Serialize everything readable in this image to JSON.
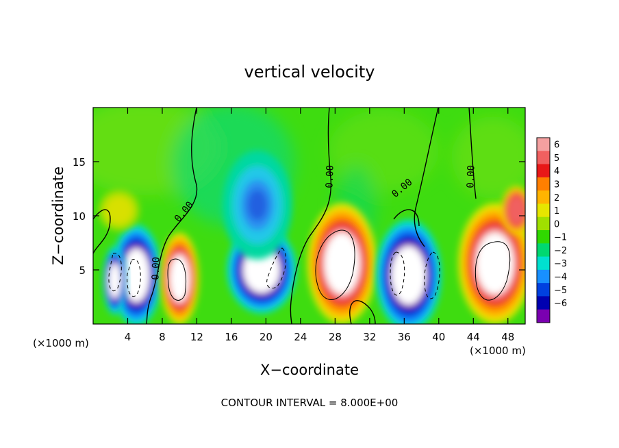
{
  "chart_data": {
    "type": "heatmap",
    "title": "vertical velocity",
    "xlabel": "X−coordinate",
    "ylabel": "Z−coordinate",
    "x_unit_left": "(×1000 m)",
    "x_unit_right": "(×1000 m)",
    "xlim": [
      0,
      50
    ],
    "ylim": [
      0,
      20
    ],
    "x_ticks": [
      4,
      8,
      12,
      16,
      20,
      24,
      28,
      32,
      36,
      40,
      44,
      48
    ],
    "x_tick_labels": [
      "4",
      "8",
      "12",
      "16",
      "20",
      "24",
      "28",
      "32",
      "36",
      "40",
      "44",
      "48"
    ],
    "y_ticks": [
      5,
      10,
      15
    ],
    "y_tick_labels": [
      "5",
      "10",
      "15"
    ],
    "colorbar": {
      "ticks": [
        6,
        5,
        4,
        3,
        2,
        1,
        0,
        -1,
        -2,
        -3,
        -4,
        -5,
        -6
      ],
      "tick_labels": [
        "6",
        "5",
        "4",
        "3",
        "2",
        "1",
        "0",
        "−1",
        "−2",
        "−3",
        "−4",
        "−5",
        "−6"
      ],
      "colors": [
        "#f4a0a0",
        "#f06060",
        "#e81818",
        "#ff7f00",
        "#ffb400",
        "#e6e600",
        "#a0e000",
        "#30d800",
        "#00d870",
        "#00e0d0",
        "#1890ff",
        "#0040e0",
        "#0000b0",
        "#7a00b0"
      ]
    },
    "contour_label": "0.00",
    "footer": "CONTOUR INTERVAL = 8.000E+00",
    "cells": [
      {
        "x": 5.0,
        "z": 4.5,
        "rx": 2.6,
        "rz": 4.2,
        "value": -12
      },
      {
        "x": 2.5,
        "z": 4.0,
        "rx": 1.2,
        "rz": 2.8,
        "value": -8
      },
      {
        "x": 10.0,
        "z": 4.2,
        "rx": 2.0,
        "rz": 3.8,
        "value": 10
      },
      {
        "x": 19.5,
        "z": 5.0,
        "rx": 3.6,
        "rz": 3.6,
        "value": -10
      },
      {
        "x": 19.0,
        "z": 11.0,
        "rx": 4.0,
        "rz": 5.0,
        "value": -3
      },
      {
        "x": 28.8,
        "z": 5.6,
        "rx": 3.6,
        "rz": 5.0,
        "value": 14
      },
      {
        "x": 36.5,
        "z": 4.5,
        "rx": 3.4,
        "rz": 4.6,
        "value": -12
      },
      {
        "x": 46.5,
        "z": 5.6,
        "rx": 3.8,
        "rz": 5.0,
        "value": 14
      },
      {
        "x": 49.0,
        "z": 10.5,
        "rx": 1.6,
        "rz": 2.0,
        "value": 3
      },
      {
        "x": 3.0,
        "z": 10.5,
        "rx": 2.5,
        "rz": 2.0,
        "value": 1.5
      }
    ]
  }
}
